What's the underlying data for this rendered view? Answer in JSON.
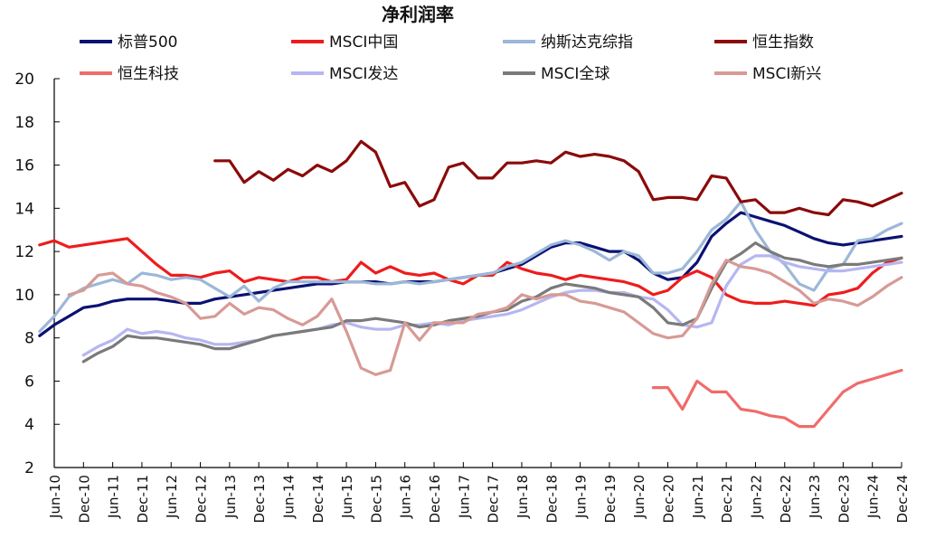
{
  "chart_data": {
    "type": "line",
    "title": "净利润率",
    "xlabel": "",
    "ylabel": "",
    "ylim": [
      2,
      20
    ],
    "yticks": [
      2,
      4,
      6,
      8,
      10,
      12,
      14,
      16,
      18,
      20
    ],
    "x_tick_labels": [
      "Jun-10",
      "Dec-10",
      "Jun-11",
      "Dec-11",
      "Jun-12",
      "Dec-12",
      "Jun-13",
      "Dec-13",
      "Jun-14",
      "Dec-14",
      "Jun-15",
      "Dec-15",
      "Jun-16",
      "Dec-16",
      "Jun-17",
      "Dec-17",
      "Jun-18",
      "Dec-18",
      "Jun-19",
      "Dec-19",
      "Jun-20",
      "Dec-20",
      "Jun-21",
      "Dec-21",
      "Jun-22",
      "Dec-22",
      "Jun-23",
      "Dec-23",
      "Jun-24",
      "Dec-24"
    ],
    "x_frequency": "quarterly",
    "x_start": "Jun-10",
    "x_end": "Dec-24",
    "grid": false,
    "legend_position": "top",
    "series": [
      {
        "name": "标普500",
        "color": "#0a1172",
        "values": [
          8.1,
          8.6,
          9.0,
          9.4,
          9.5,
          9.7,
          9.8,
          9.8,
          9.8,
          9.7,
          9.6,
          9.6,
          9.8,
          9.9,
          10.0,
          10.1,
          10.2,
          10.3,
          10.4,
          10.5,
          10.5,
          10.6,
          10.6,
          10.6,
          10.5,
          10.6,
          10.6,
          10.6,
          10.7,
          10.8,
          10.9,
          11.0,
          11.2,
          11.4,
          11.8,
          12.2,
          12.4,
          12.4,
          12.2,
          12.0,
          12.0,
          11.6,
          11.0,
          10.7,
          10.8,
          11.5,
          12.7,
          13.3,
          13.8,
          13.6,
          13.4,
          13.2,
          12.9,
          12.6,
          12.4,
          12.3,
          12.4,
          12.5,
          12.6,
          12.7
        ]
      },
      {
        "name": "MSCI中国",
        "color": "#ee1c1c",
        "values": [
          12.3,
          12.5,
          12.2,
          12.3,
          12.4,
          12.5,
          12.6,
          12.0,
          11.4,
          10.9,
          10.9,
          10.8,
          11.0,
          11.1,
          10.6,
          10.8,
          10.7,
          10.6,
          10.8,
          10.8,
          10.6,
          10.7,
          11.5,
          11.0,
          11.3,
          11.0,
          10.9,
          11.0,
          10.7,
          10.5,
          10.9,
          10.9,
          11.5,
          11.2,
          11.0,
          10.9,
          10.7,
          10.9,
          10.8,
          10.7,
          10.6,
          10.4,
          10.0,
          10.2,
          10.8,
          11.1,
          10.8,
          10.0,
          9.7,
          9.6,
          9.6,
          9.7,
          9.6,
          9.5,
          10.0,
          10.1,
          10.3,
          11.0,
          11.5,
          11.7
        ]
      },
      {
        "name": "纳斯达克综指",
        "color": "#9cb7d8",
        "values": [
          8.3,
          9.0,
          9.9,
          10.3,
          10.5,
          10.7,
          10.5,
          11.0,
          10.9,
          10.7,
          10.8,
          10.7,
          10.3,
          9.9,
          10.4,
          9.7,
          10.3,
          10.6,
          10.6,
          10.6,
          10.6,
          10.6,
          10.6,
          10.5,
          10.5,
          10.6,
          10.5,
          10.6,
          10.7,
          10.8,
          10.9,
          11.0,
          11.3,
          11.5,
          11.9,
          12.3,
          12.5,
          12.3,
          12.0,
          11.6,
          12.0,
          11.8,
          11.0,
          11.0,
          11.2,
          12.0,
          13.0,
          13.5,
          14.3,
          13.0,
          12.0,
          11.4,
          10.5,
          10.2,
          11.2,
          11.4,
          12.5,
          12.6,
          13.0,
          13.3
        ]
      },
      {
        "name": "恒生指数",
        "color": "#8b0a0a",
        "values": [
          null,
          null,
          null,
          null,
          null,
          null,
          null,
          null,
          null,
          null,
          16.2,
          16.2,
          15.2,
          15.7,
          15.3,
          15.8,
          15.5,
          16.0,
          15.7,
          16.2,
          17.1,
          16.6,
          15.0,
          15.2,
          14.1,
          14.4,
          15.9,
          16.1,
          15.4,
          15.4,
          16.1,
          16.1,
          16.2,
          16.1,
          16.6,
          16.4,
          16.5,
          16.4,
          16.2,
          15.7,
          14.4,
          14.5,
          14.5,
          14.4,
          15.5,
          15.4,
          14.3,
          14.4,
          13.8,
          13.8,
          14.0,
          13.8,
          13.7,
          14.4,
          14.3,
          14.1,
          14.4,
          14.7
        ]
      },
      {
        "name": "恒生科技",
        "color": "#f06b6b",
        "values": [
          null,
          null,
          null,
          null,
          null,
          null,
          null,
          null,
          null,
          null,
          null,
          null,
          null,
          null,
          null,
          null,
          null,
          null,
          null,
          null,
          null,
          null,
          null,
          null,
          null,
          null,
          null,
          null,
          null,
          null,
          null,
          null,
          null,
          null,
          null,
          null,
          null,
          null,
          null,
          null,
          null,
          5.7,
          5.7,
          4.7,
          6.0,
          5.5,
          5.5,
          4.7,
          4.6,
          4.4,
          4.3,
          3.9,
          3.9,
          4.7,
          5.5,
          5.9,
          6.1,
          6.3,
          6.5
        ]
      },
      {
        "name": "MSCI发达",
        "color": "#b6b6f2",
        "values": [
          7.2,
          7.6,
          7.9,
          8.4,
          8.2,
          8.3,
          8.2,
          8.0,
          7.9,
          7.7,
          7.7,
          7.8,
          7.9,
          8.1,
          8.2,
          8.3,
          8.4,
          8.6,
          8.7,
          8.5,
          8.4,
          8.4,
          8.6,
          8.6,
          8.7,
          8.6,
          8.8,
          8.9,
          9.0,
          9.1,
          9.3,
          9.6,
          9.9,
          10.1,
          10.2,
          10.2,
          10.1,
          10.1,
          9.9,
          9.8,
          9.3,
          8.6,
          8.5,
          8.7,
          10.4,
          11.4,
          11.8,
          11.8,
          11.5,
          11.3,
          11.2,
          11.1,
          11.1,
          11.2,
          11.3,
          11.4,
          11.5
        ]
      },
      {
        "name": "MSCI全球",
        "color": "#7a7a7a",
        "values": [
          6.9,
          7.3,
          7.6,
          8.1,
          8.0,
          8.0,
          7.9,
          7.8,
          7.7,
          7.5,
          7.5,
          7.7,
          7.9,
          8.1,
          8.2,
          8.3,
          8.4,
          8.5,
          8.8,
          8.8,
          8.9,
          8.8,
          8.7,
          8.5,
          8.6,
          8.8,
          8.9,
          9.0,
          9.2,
          9.3,
          9.7,
          9.9,
          10.3,
          10.5,
          10.4,
          10.3,
          10.1,
          10.0,
          9.9,
          9.4,
          8.7,
          8.6,
          8.9,
          10.3,
          11.5,
          11.9,
          12.4,
          12.0,
          11.7,
          11.6,
          11.4,
          11.3,
          11.4,
          11.4,
          11.5,
          11.6,
          11.7
        ]
      },
      {
        "name": "MSCI新兴",
        "color": "#d79a95",
        "values": [
          10.0,
          10.2,
          10.9,
          11.0,
          10.5,
          10.4,
          10.1,
          9.9,
          9.6,
          8.9,
          9.0,
          9.6,
          9.1,
          9.4,
          9.3,
          8.9,
          8.6,
          9.0,
          9.8,
          8.3,
          6.6,
          6.3,
          6.5,
          8.7,
          7.9,
          8.7,
          8.7,
          8.7,
          9.1,
          9.2,
          9.4,
          10.0,
          9.8,
          10.0,
          10.0,
          9.7,
          9.6,
          9.4,
          9.2,
          8.7,
          8.2,
          8.0,
          8.1,
          8.9,
          10.5,
          11.6,
          11.3,
          11.2,
          11.0,
          10.6,
          10.2,
          9.6,
          9.8,
          9.7,
          9.5,
          9.9,
          10.4,
          10.8
        ]
      }
    ]
  }
}
